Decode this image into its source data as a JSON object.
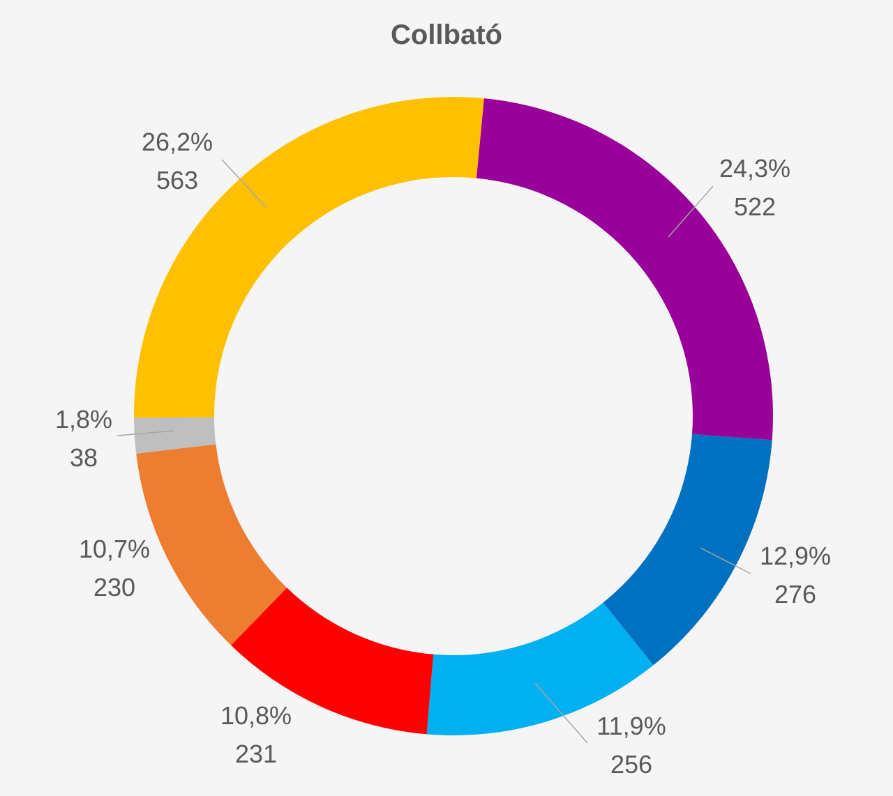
{
  "chart_data": {
    "type": "pie",
    "variant": "doughnut",
    "title": "Collbató",
    "slices": [
      {
        "value": 522,
        "percent_label": "24,3%",
        "value_label": "522",
        "color": "#990099"
      },
      {
        "value": 276,
        "percent_label": "12,9%",
        "value_label": "276",
        "color": "#0070c0"
      },
      {
        "value": 256,
        "percent_label": "11,9%",
        "value_label": "256",
        "color": "#00b0f0"
      },
      {
        "value": 231,
        "percent_label": "10,8%",
        "value_label": "231",
        "color": "#ff0000"
      },
      {
        "value": 230,
        "percent_label": "10,7%",
        "value_label": "230",
        "color": "#ed7d31"
      },
      {
        "value": 38,
        "percent_label": "1,8%",
        "value_label": "38",
        "color": "#bfbfbf"
      },
      {
        "value": 563,
        "percent_label": "26,2%",
        "value_label": "563",
        "color": "#ffc000"
      }
    ],
    "legend": "none"
  }
}
